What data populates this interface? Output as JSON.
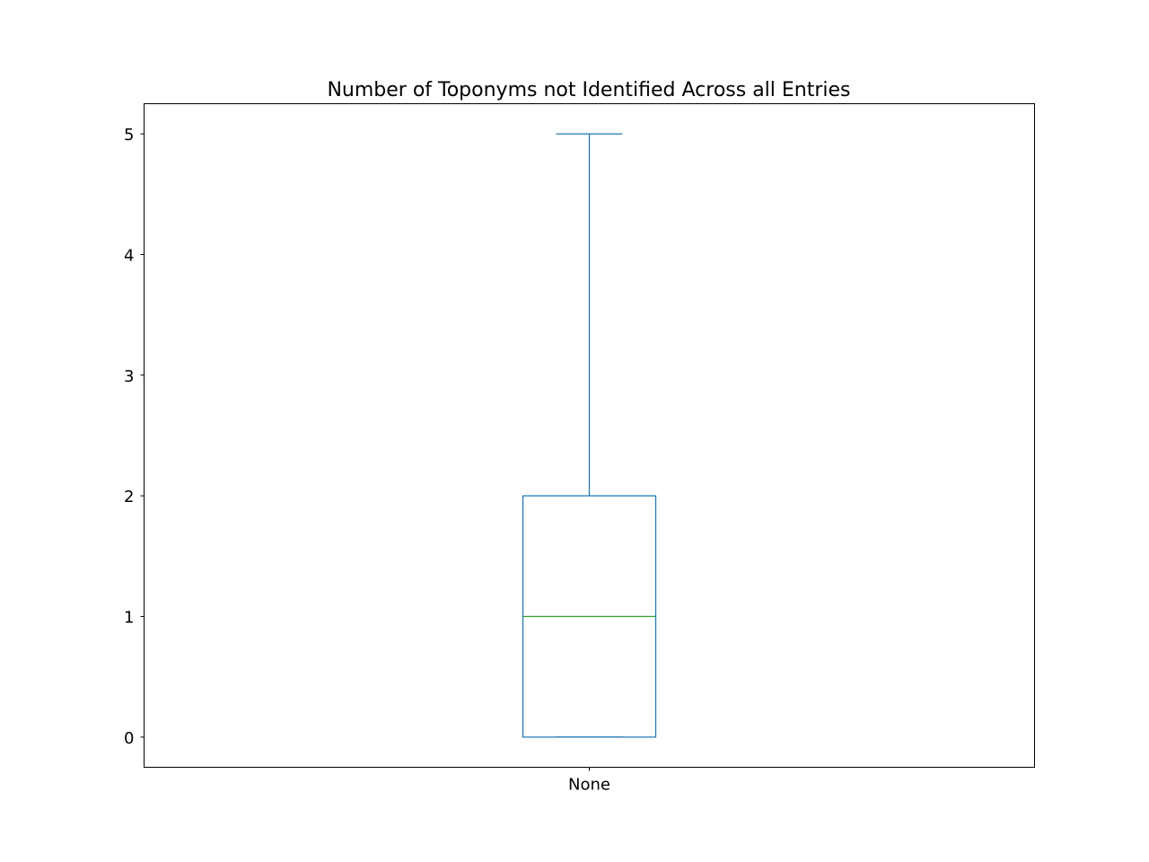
{
  "chart_data": {
    "type": "box",
    "title": "Number of Toponyms not Identified Across all Entries",
    "xlabel": "",
    "ylabel": "",
    "categories": [
      "None"
    ],
    "boxes": [
      {
        "category": "None",
        "whisker_low": 0,
        "q1": 0,
        "median": 1,
        "q3": 2,
        "whisker_high": 5
      }
    ],
    "ylim": [
      -0.25,
      5.25
    ],
    "yticks": [
      0,
      1,
      2,
      3,
      4,
      5
    ],
    "grid": false,
    "colors": {
      "box": "#1f77b4",
      "median": "#2ca02c",
      "axes": "#000000"
    }
  }
}
